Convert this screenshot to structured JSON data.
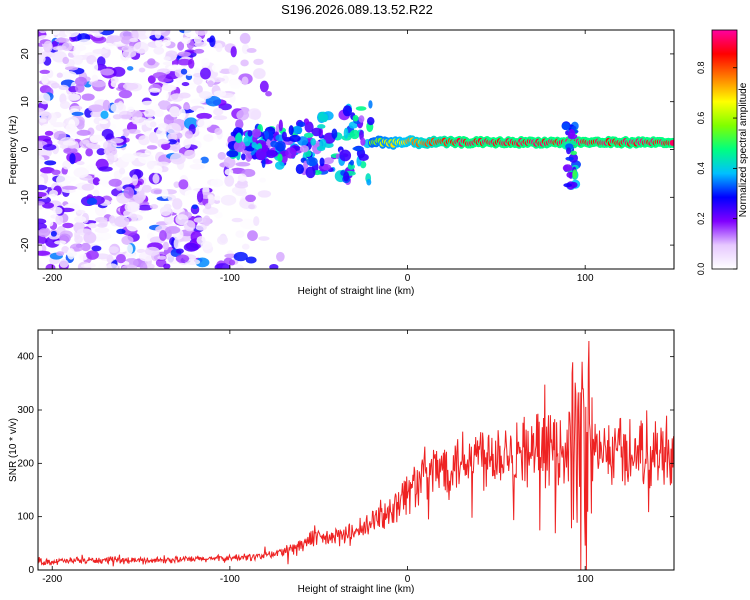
{
  "title": "S196.2026.089.13.52.R22",
  "chart_data": [
    {
      "type": "heatmap",
      "xlabel": "Height of straight line (km)",
      "ylabel": "Frequency (Hz)",
      "xlim": [
        -208,
        150
      ],
      "ylim": [
        -25,
        25
      ],
      "xticks": [
        -200,
        -100,
        0,
        100
      ],
      "xtick_labels": [
        "-200",
        "-100",
        "0",
        "100"
      ],
      "yticks": [
        -20,
        -10,
        0,
        10,
        20
      ],
      "ytick_labels": [
        "-20",
        "-10",
        "0",
        "10",
        "20"
      ],
      "colorbar": {
        "label": "Normalized spectral amplitude",
        "range": [
          0,
          0.95
        ],
        "ticks": [
          0,
          0.2,
          0.4,
          0.6,
          0.8
        ],
        "tick_labels": [
          "0.0",
          "0.2",
          "0.4",
          "0.6",
          "0.8"
        ],
        "colors": [
          "#ffffff",
          "#e6c8ff",
          "#8000ff",
          "#0000ff",
          "#00c0ff",
          "#00ff80",
          "#80ff00",
          "#ffff00",
          "#ff8000",
          "#ff0000",
          "#ff00a0"
        ]
      },
      "features": [
        {
          "name": "scattered noise",
          "x_range": [
            -208,
            -70
          ],
          "y_range": [
            -25,
            25
          ],
          "amplitude": 0.15
        },
        {
          "name": "onset region",
          "x_range": [
            -100,
            -20
          ],
          "y_range": [
            -15,
            8
          ],
          "amplitude": 0.3
        },
        {
          "name": "carrier line",
          "x_range": [
            -20,
            150
          ],
          "y_center": 1.5,
          "amplitude": 0.9
        },
        {
          "name": "disturbance",
          "x_center": 92,
          "y_range": [
            -8,
            5
          ],
          "amplitude": 0.35
        }
      ]
    },
    {
      "type": "line",
      "xlabel": "Height of straight line (km)",
      "ylabel": "SNR (10 * v/v)",
      "xlim": [
        -208,
        150
      ],
      "ylim": [
        0,
        450
      ],
      "xticks": [
        -200,
        -100,
        0,
        100
      ],
      "xtick_labels": [
        "-200",
        "-100",
        "0",
        "100"
      ],
      "yticks": [
        0,
        100,
        200,
        300,
        400
      ],
      "ytick_labels": [
        "0",
        "100",
        "200",
        "300",
        "400"
      ],
      "series": [
        {
          "name": "SNR",
          "color": "#ee2222",
          "x": [
            -208,
            -180,
            -150,
            -120,
            -100,
            -85,
            -75,
            -65,
            -55,
            -45,
            -35,
            -25,
            -15,
            -5,
            5,
            15,
            25,
            35,
            45,
            60,
            75,
            85,
            92,
            96,
            100,
            105,
            115,
            130,
            150
          ],
          "y": [
            15,
            18,
            18,
            20,
            22,
            25,
            30,
            40,
            55,
            60,
            65,
            75,
            100,
            130,
            165,
            185,
            200,
            215,
            220,
            225,
            225,
            225,
            240,
            200,
            230,
            220,
            220,
            225,
            225
          ]
        }
      ]
    }
  ]
}
